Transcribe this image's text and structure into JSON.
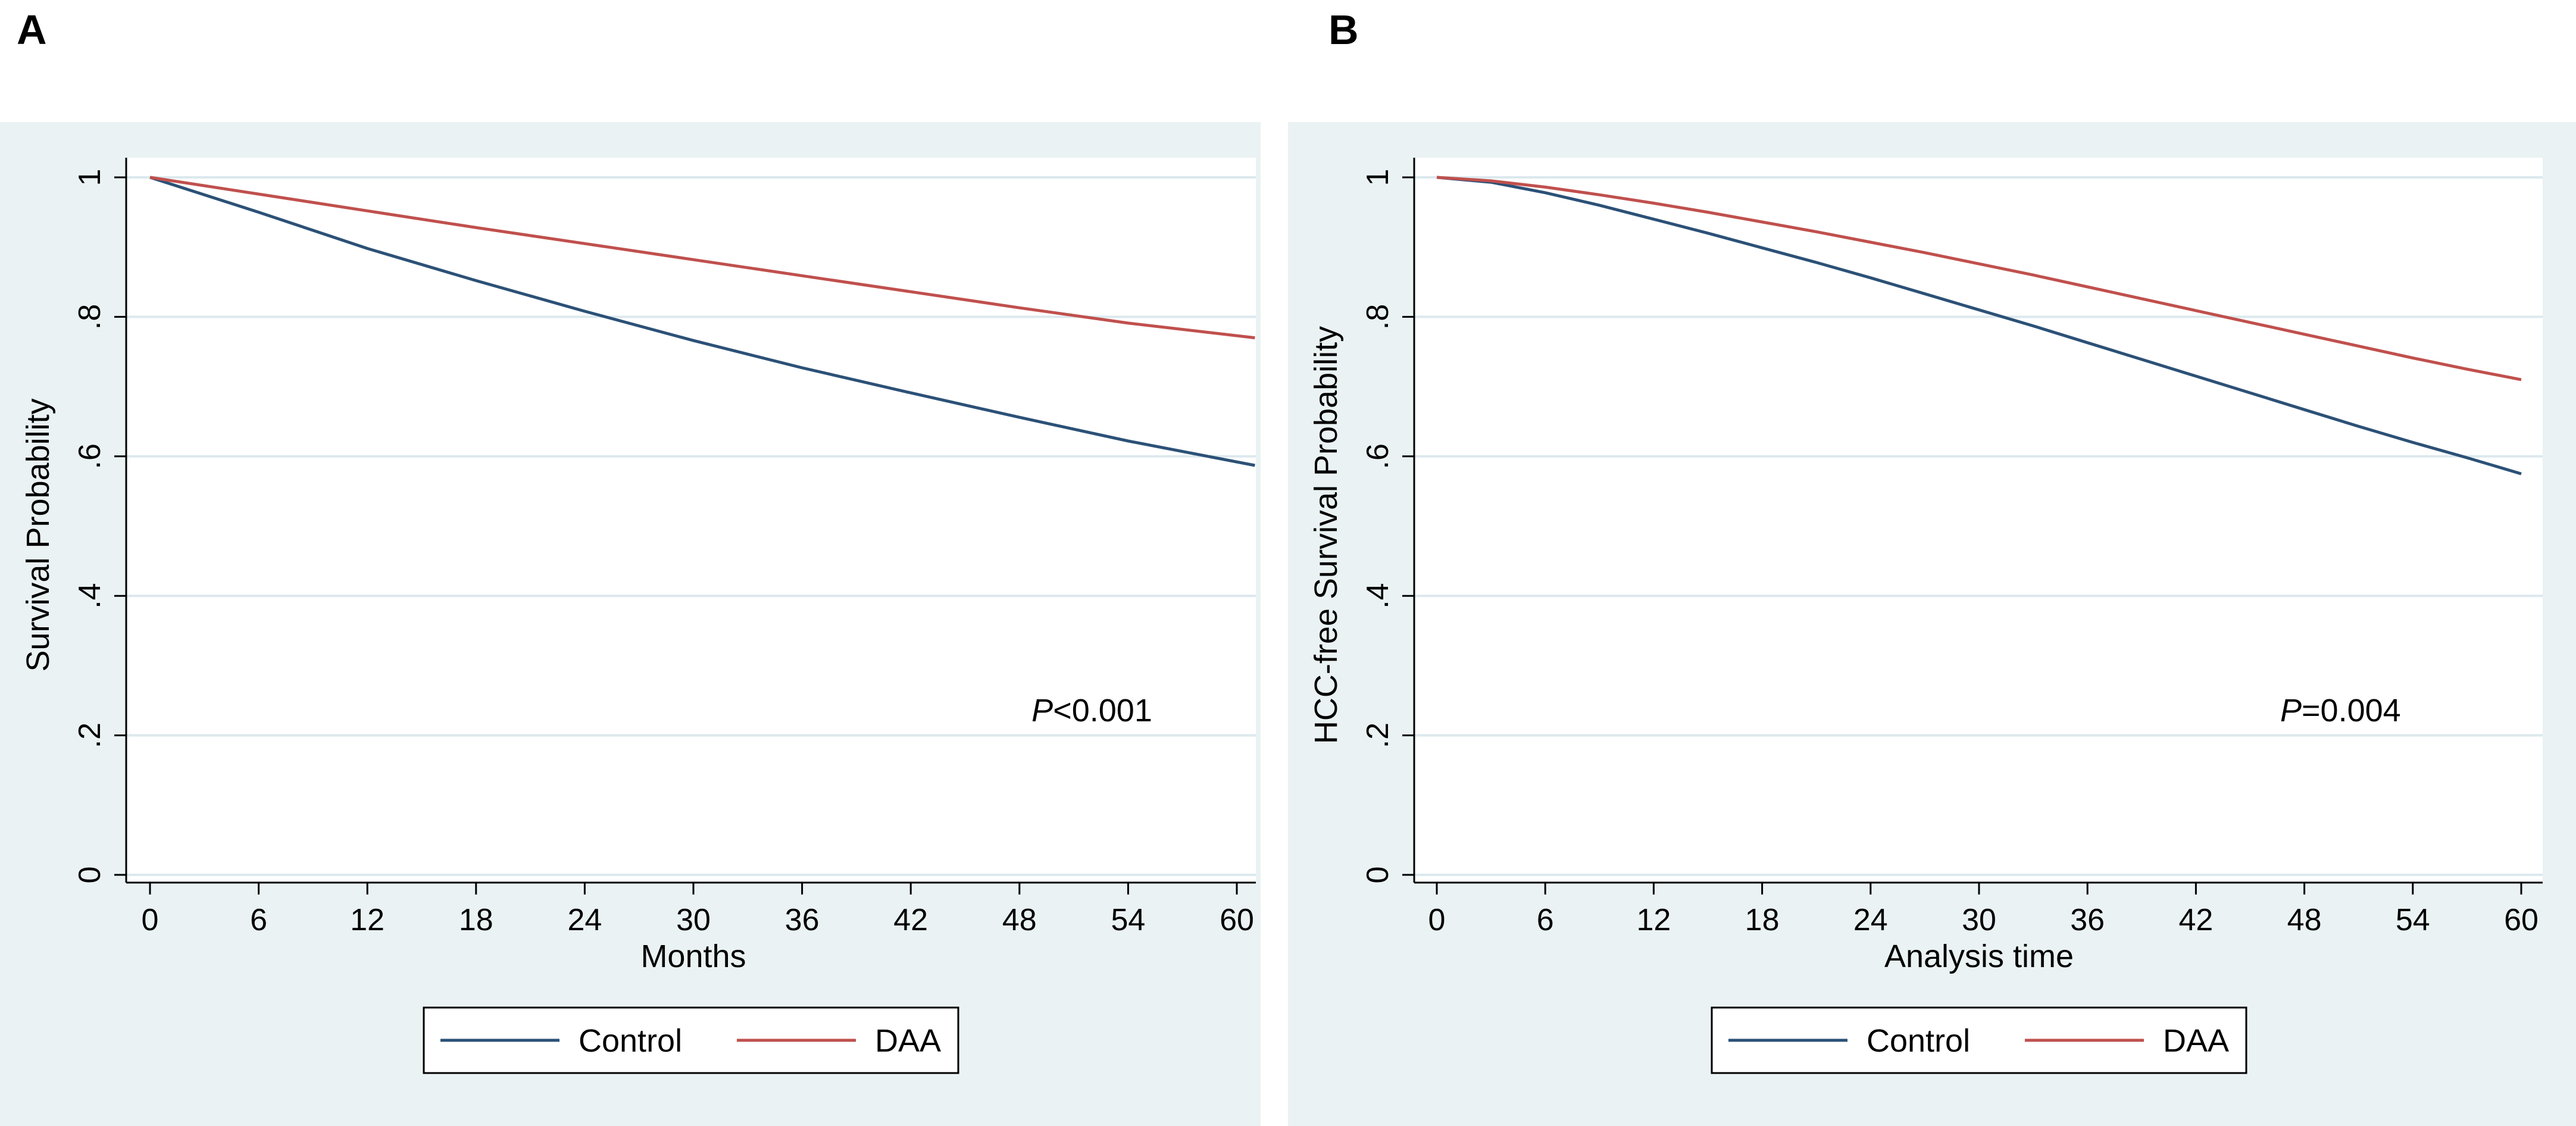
{
  "panels": [
    {
      "letter": "A"
    },
    {
      "letter": "B"
    }
  ],
  "colors": {
    "background": "#eaf2f3",
    "plot_bg": "#ffffff",
    "grid": "#dce9ee",
    "control": "#2c5177",
    "daa": "#c0504d"
  },
  "chart_data": [
    {
      "type": "line",
      "panel": "A",
      "title": "",
      "xlabel": "Months",
      "ylabel": "Survival Probability",
      "xlim": [
        0,
        61
      ],
      "ylim": [
        0,
        1
      ],
      "xticks": [
        0,
        6,
        12,
        18,
        24,
        30,
        36,
        42,
        48,
        54,
        60
      ],
      "xtick_labels": [
        "0",
        "6",
        "12",
        "18",
        "24",
        "30",
        "36",
        "42",
        "48",
        "54",
        "60"
      ],
      "yticks": [
        0,
        0.2,
        0.4,
        0.6,
        0.8,
        1
      ],
      "ytick_labels": [
        "0",
        ".2",
        ".4",
        ".6",
        ".8",
        "1"
      ],
      "grid": true,
      "annotation": {
        "p_letter": "P",
        "p_value": "<0.001",
        "x": 52,
        "y": 0.22
      },
      "legend": [
        "Control",
        "DAA"
      ],
      "legend_position": "bottom",
      "series": [
        {
          "name": "Control",
          "color": "#2c5177",
          "x": [
            0,
            6,
            12,
            18,
            24,
            30,
            36,
            42,
            48,
            54,
            61
          ],
          "y": [
            1.0,
            0.95,
            0.898,
            0.852,
            0.808,
            0.766,
            0.727,
            0.691,
            0.656,
            0.622,
            0.587
          ]
        },
        {
          "name": "DAA",
          "color": "#c0504d",
          "x": [
            0,
            6,
            12,
            18,
            24,
            30,
            36,
            42,
            48,
            54,
            61
          ],
          "y": [
            1.0,
            0.976,
            0.952,
            0.928,
            0.905,
            0.882,
            0.859,
            0.836,
            0.813,
            0.791,
            0.77
          ]
        }
      ]
    },
    {
      "type": "line",
      "panel": "B",
      "title": "",
      "xlabel": "Analysis time",
      "ylabel": "HCC-free Survival Probability",
      "xlim": [
        0,
        60
      ],
      "ylim": [
        0,
        1
      ],
      "xticks": [
        0,
        6,
        12,
        18,
        24,
        30,
        36,
        42,
        48,
        54,
        60
      ],
      "xtick_labels": [
        "0",
        "6",
        "12",
        "18",
        "24",
        "30",
        "36",
        "42",
        "48",
        "54",
        "60"
      ],
      "yticks": [
        0,
        0.2,
        0.4,
        0.6,
        0.8,
        1
      ],
      "ytick_labels": [
        "0",
        ".2",
        ".4",
        ".6",
        ".8",
        "1"
      ],
      "grid": true,
      "annotation": {
        "p_letter": "P",
        "p_value": "=0.004",
        "x": 50,
        "y": 0.22
      },
      "legend": [
        "Control",
        "DAA"
      ],
      "legend_position": "bottom",
      "series": [
        {
          "name": "Control",
          "color": "#2c5177",
          "x": [
            0,
            3,
            6,
            9,
            12,
            15,
            18,
            21,
            24,
            27,
            30,
            33,
            36,
            39,
            42,
            45,
            48,
            51,
            54,
            57,
            60
          ],
          "y": [
            1.0,
            0.993,
            0.978,
            0.96,
            0.94,
            0.92,
            0.899,
            0.878,
            0.856,
            0.833,
            0.81,
            0.787,
            0.763,
            0.739,
            0.715,
            0.691,
            0.667,
            0.643,
            0.62,
            0.598,
            0.575
          ]
        },
        {
          "name": "DAA",
          "color": "#c0504d",
          "x": [
            0,
            3,
            6,
            9,
            12,
            15,
            18,
            21,
            24,
            27,
            30,
            33,
            36,
            39,
            42,
            45,
            48,
            51,
            54,
            57,
            60
          ],
          "y": [
            1.0,
            0.995,
            0.986,
            0.975,
            0.963,
            0.95,
            0.936,
            0.922,
            0.907,
            0.892,
            0.876,
            0.86,
            0.843,
            0.826,
            0.809,
            0.792,
            0.775,
            0.758,
            0.741,
            0.725,
            0.71
          ]
        }
      ]
    }
  ]
}
